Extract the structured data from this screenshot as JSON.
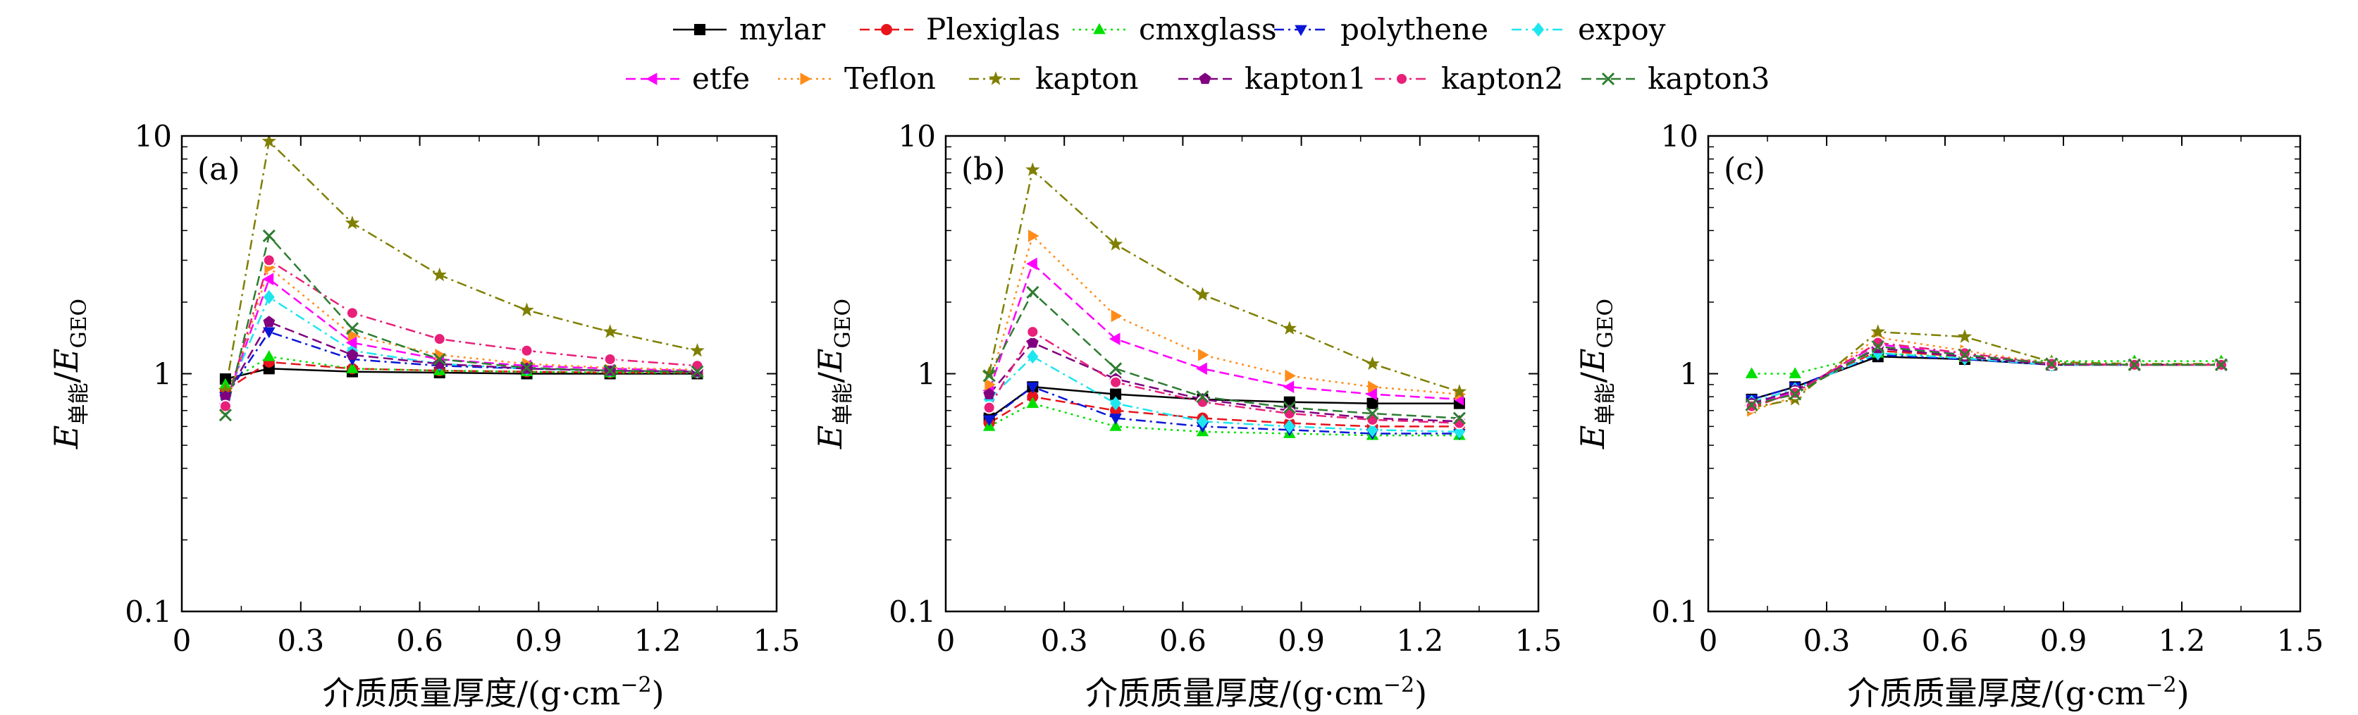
{
  "legend": [
    {
      "name": "mylar",
      "color": "#000000",
      "marker": "square",
      "dash": "solid"
    },
    {
      "name": "Plexiglas",
      "color": "#e8141c",
      "marker": "circle",
      "dash": "dash"
    },
    {
      "name": "cmxglass",
      "color": "#00e000",
      "marker": "triangle-up",
      "dash": "dot"
    },
    {
      "name": "polythene",
      "color": "#0a17d6",
      "marker": "triangle-down",
      "dash": "dashdot"
    },
    {
      "name": "expoy",
      "color": "#1ee6ef",
      "marker": "diamond",
      "dash": "dashdot"
    },
    {
      "name": "etfe",
      "color": "#ff00ff",
      "marker": "triangle-left",
      "dash": "dash"
    },
    {
      "name": "Teflon",
      "color": "#ff8c1a",
      "marker": "triangle-right",
      "dash": "dot"
    },
    {
      "name": "kapton",
      "color": "#7f7f00",
      "marker": "star",
      "dash": "dashdot"
    },
    {
      "name": "kapton1",
      "color": "#800080",
      "marker": "pentagon",
      "dash": "dash"
    },
    {
      "name": "kapton2",
      "color": "#e8207a",
      "marker": "circle-open",
      "dash": "dashdot"
    },
    {
      "name": "kapton3",
      "color": "#2e7d32",
      "marker": "x",
      "dash": "dash"
    }
  ],
  "axes": {
    "xlabel": "介质质量厚度/(g·cm",
    "xlabel_sup": "−2",
    "xlabel_close": ")",
    "ylabel_e1": "E",
    "ylabel_sub1": "单能",
    "ylabel_slash": "/",
    "ylabel_e2": "E",
    "ylabel_sub2": "GEO",
    "xticks": [
      "0",
      "0.3",
      "0.6",
      "0.9",
      "1.2",
      "1.5"
    ],
    "yticks": [
      "0.1",
      "1",
      "10"
    ],
    "xlim": [
      0,
      1.5
    ],
    "ylim": [
      0.1,
      10
    ],
    "yscale": "log"
  },
  "chart_data": [
    {
      "type": "line",
      "panel_label": "(a)",
      "x": [
        0.11,
        0.22,
        0.43,
        0.65,
        0.87,
        1.08,
        1.3
      ],
      "series": [
        {
          "name": "mylar",
          "values": [
            0.95,
            1.05,
            1.02,
            1.01,
            1.0,
            1.0,
            1.0
          ]
        },
        {
          "name": "Plexiglas",
          "values": [
            0.85,
            1.12,
            1.05,
            1.03,
            1.02,
            1.01,
            1.01
          ]
        },
        {
          "name": "cmxglass",
          "values": [
            0.9,
            1.18,
            1.05,
            1.03,
            1.02,
            1.01,
            1.01
          ]
        },
        {
          "name": "polythene",
          "values": [
            0.8,
            1.5,
            1.15,
            1.08,
            1.05,
            1.03,
            1.02
          ]
        },
        {
          "name": "expoy",
          "values": [
            0.78,
            2.1,
            1.25,
            1.1,
            1.05,
            1.03,
            1.02
          ]
        },
        {
          "name": "etfe",
          "values": [
            0.75,
            2.5,
            1.35,
            1.15,
            1.08,
            1.05,
            1.03
          ]
        },
        {
          "name": "Teflon",
          "values": [
            0.72,
            2.8,
            1.45,
            1.2,
            1.1,
            1.06,
            1.04
          ]
        },
        {
          "name": "kapton",
          "values": [
            0.85,
            9.5,
            4.3,
            2.6,
            1.85,
            1.5,
            1.25
          ]
        },
        {
          "name": "kapton1",
          "values": [
            0.8,
            1.65,
            1.2,
            1.1,
            1.05,
            1.03,
            1.02
          ]
        },
        {
          "name": "kapton2",
          "values": [
            0.73,
            3.0,
            1.8,
            1.4,
            1.25,
            1.15,
            1.08
          ]
        },
        {
          "name": "kapton3",
          "values": [
            0.67,
            3.8,
            1.55,
            1.15,
            1.06,
            1.03,
            1.02
          ]
        }
      ]
    },
    {
      "type": "line",
      "panel_label": "(b)",
      "x": [
        0.11,
        0.22,
        0.43,
        0.65,
        0.87,
        1.08,
        1.3
      ],
      "series": [
        {
          "name": "mylar",
          "values": [
            0.65,
            0.88,
            0.82,
            0.78,
            0.76,
            0.75,
            0.75
          ]
        },
        {
          "name": "Plexiglas",
          "values": [
            0.62,
            0.8,
            0.7,
            0.65,
            0.62,
            0.6,
            0.6
          ]
        },
        {
          "name": "cmxglass",
          "values": [
            0.6,
            0.75,
            0.6,
            0.57,
            0.56,
            0.55,
            0.55
          ]
        },
        {
          "name": "polythene",
          "values": [
            0.64,
            0.88,
            0.65,
            0.6,
            0.58,
            0.56,
            0.56
          ]
        },
        {
          "name": "expoy",
          "values": [
            0.78,
            1.18,
            0.75,
            0.63,
            0.6,
            0.58,
            0.57
          ]
        },
        {
          "name": "etfe",
          "values": [
            0.85,
            2.9,
            1.4,
            1.05,
            0.88,
            0.82,
            0.78
          ]
        },
        {
          "name": "Teflon",
          "values": [
            0.9,
            3.8,
            1.75,
            1.2,
            0.98,
            0.88,
            0.82
          ]
        },
        {
          "name": "kapton",
          "values": [
            1.0,
            7.2,
            3.5,
            2.15,
            1.55,
            1.1,
            0.84
          ]
        },
        {
          "name": "kapton1",
          "values": [
            0.82,
            1.35,
            0.95,
            0.78,
            0.7,
            0.65,
            0.63
          ]
        },
        {
          "name": "kapton2",
          "values": [
            0.72,
            1.5,
            0.92,
            0.76,
            0.68,
            0.64,
            0.62
          ]
        },
        {
          "name": "kapton3",
          "values": [
            0.98,
            2.2,
            1.05,
            0.8,
            0.72,
            0.68,
            0.65
          ]
        }
      ]
    },
    {
      "type": "line",
      "panel_label": "(c)",
      "x": [
        0.11,
        0.22,
        0.43,
        0.65,
        0.87,
        1.08,
        1.3
      ],
      "series": [
        {
          "name": "mylar",
          "values": [
            0.78,
            0.88,
            1.18,
            1.15,
            1.09,
            1.09,
            1.09
          ]
        },
        {
          "name": "Plexiglas",
          "values": [
            0.72,
            0.84,
            1.25,
            1.18,
            1.1,
            1.09,
            1.09
          ]
        },
        {
          "name": "cmxglass",
          "values": [
            1.0,
            1.0,
            1.22,
            1.17,
            1.13,
            1.13,
            1.13
          ]
        },
        {
          "name": "polythene",
          "values": [
            0.78,
            0.88,
            1.2,
            1.15,
            1.09,
            1.09,
            1.09
          ]
        },
        {
          "name": "expoy",
          "values": [
            0.76,
            0.86,
            1.22,
            1.16,
            1.09,
            1.09,
            1.09
          ]
        },
        {
          "name": "etfe",
          "values": [
            0.74,
            0.84,
            1.33,
            1.2,
            1.1,
            1.09,
            1.09
          ]
        },
        {
          "name": "Teflon",
          "values": [
            0.7,
            0.8,
            1.42,
            1.25,
            1.1,
            1.09,
            1.09
          ]
        },
        {
          "name": "kapton",
          "values": [
            0.72,
            0.78,
            1.5,
            1.43,
            1.12,
            1.1,
            1.1
          ]
        },
        {
          "name": "kapton1",
          "values": [
            0.75,
            0.85,
            1.28,
            1.18,
            1.09,
            1.09,
            1.09
          ]
        },
        {
          "name": "kapton2",
          "values": [
            0.73,
            0.83,
            1.35,
            1.22,
            1.1,
            1.09,
            1.09
          ]
        },
        {
          "name": "kapton3",
          "values": [
            0.74,
            0.82,
            1.3,
            1.2,
            1.1,
            1.09,
            1.09
          ]
        }
      ]
    }
  ]
}
